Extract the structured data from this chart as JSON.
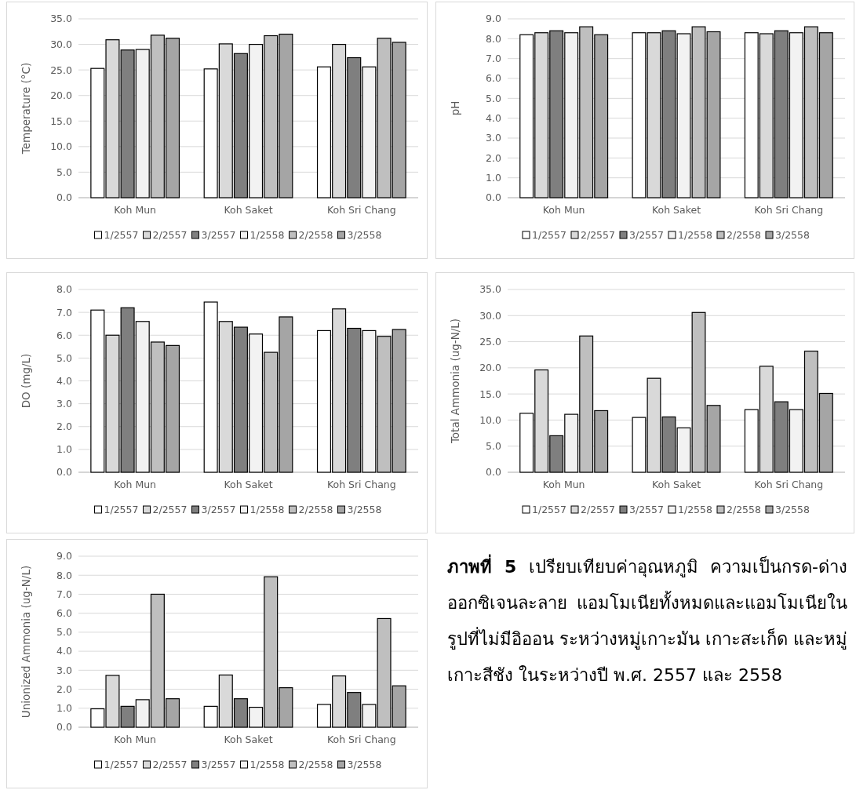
{
  "chart_data": [
    {
      "type": "bar",
      "ylabel": "Temperature (°C)",
      "categories": [
        "Koh Mun",
        "Koh Saket",
        "Koh Sri Chang"
      ],
      "ylim": [
        0,
        35
      ],
      "yticks": [
        {
          "value": 0,
          "label": "0.0"
        },
        {
          "value": 5,
          "label": "5.0"
        },
        {
          "value": 10,
          "label": "10.0"
        },
        {
          "value": 15,
          "label": "15.0"
        },
        {
          "value": 20,
          "label": "20.0"
        },
        {
          "value": 25,
          "label": "25.0"
        },
        {
          "value": 30,
          "label": "30.0"
        },
        {
          "value": 35,
          "label": "35.0"
        }
      ],
      "grid": "y",
      "legend": "bottom",
      "series": [
        {
          "name": "1/2557",
          "color": "#ffffff",
          "values": [
            25.3,
            25.2,
            25.6
          ]
        },
        {
          "name": "2/2557",
          "color": "#d9d9d9",
          "values": [
            30.9,
            30.1,
            30.0
          ]
        },
        {
          "name": "3/2557",
          "color": "#7f7f7f",
          "values": [
            28.9,
            28.2,
            27.4
          ]
        },
        {
          "name": "1/2558",
          "color": "#f2f2f2",
          "values": [
            29.0,
            30.0,
            25.6
          ]
        },
        {
          "name": "2/2558",
          "color": "#bfbfbf",
          "values": [
            31.8,
            31.7,
            31.2
          ]
        },
        {
          "name": "3/2558",
          "color": "#a5a5a5",
          "values": [
            31.2,
            32.0,
            30.4
          ]
        }
      ]
    },
    {
      "type": "bar",
      "ylabel": "pH",
      "categories": [
        "Koh Mun",
        "Koh Saket",
        "Koh Sri Chang"
      ],
      "ylim": [
        0,
        9
      ],
      "yticks": [
        {
          "value": 0,
          "label": "0.0"
        },
        {
          "value": 1,
          "label": "1.0"
        },
        {
          "value": 2,
          "label": "2.0"
        },
        {
          "value": 3,
          "label": "3.0"
        },
        {
          "value": 4,
          "label": "4.0"
        },
        {
          "value": 5,
          "label": "5.0"
        },
        {
          "value": 6,
          "label": "6.0"
        },
        {
          "value": 7,
          "label": "7.0"
        },
        {
          "value": 8,
          "label": "8.0"
        },
        {
          "value": 9,
          "label": "9.0"
        }
      ],
      "grid": "y",
      "legend": "bottom",
      "series": [
        {
          "name": "1/2557",
          "color": "#ffffff",
          "values": [
            8.2,
            8.3,
            8.3
          ]
        },
        {
          "name": "2/2557",
          "color": "#d9d9d9",
          "values": [
            8.3,
            8.3,
            8.25
          ]
        },
        {
          "name": "3/2557",
          "color": "#7f7f7f",
          "values": [
            8.4,
            8.4,
            8.4
          ]
        },
        {
          "name": "1/2558",
          "color": "#f2f2f2",
          "values": [
            8.3,
            8.25,
            8.3
          ]
        },
        {
          "name": "2/2558",
          "color": "#bfbfbf",
          "values": [
            8.6,
            8.6,
            8.6
          ]
        },
        {
          "name": "3/2558",
          "color": "#a5a5a5",
          "values": [
            8.2,
            8.35,
            8.3
          ]
        }
      ]
    },
    {
      "type": "bar",
      "ylabel": "DO (mg/L)",
      "categories": [
        "Koh Mun",
        "Koh Saket",
        "Koh Sri Chang"
      ],
      "ylim": [
        0,
        8
      ],
      "yticks": [
        {
          "value": 0,
          "label": "0.0"
        },
        {
          "value": 1,
          "label": "1.0"
        },
        {
          "value": 2,
          "label": "2.0"
        },
        {
          "value": 3,
          "label": "3.0"
        },
        {
          "value": 4,
          "label": "4.0"
        },
        {
          "value": 5,
          "label": "5.0"
        },
        {
          "value": 6,
          "label": "6.0"
        },
        {
          "value": 7,
          "label": "7.0"
        },
        {
          "value": 8,
          "label": "8.0"
        }
      ],
      "grid": "y",
      "legend": "bottom",
      "series": [
        {
          "name": "1/2557",
          "color": "#ffffff",
          "values": [
            7.1,
            7.45,
            6.2
          ]
        },
        {
          "name": "2/2557",
          "color": "#d9d9d9",
          "values": [
            6.0,
            6.6,
            7.15
          ]
        },
        {
          "name": "3/2557",
          "color": "#7f7f7f",
          "values": [
            7.2,
            6.35,
            6.3
          ]
        },
        {
          "name": "1/2558",
          "color": "#f2f2f2",
          "values": [
            6.6,
            6.05,
            6.2
          ]
        },
        {
          "name": "2/2558",
          "color": "#bfbfbf",
          "values": [
            5.7,
            5.25,
            5.95
          ]
        },
        {
          "name": "3/2558",
          "color": "#a5a5a5",
          "values": [
            5.55,
            6.8,
            6.25
          ]
        }
      ]
    },
    {
      "type": "bar",
      "ylabel": "Total Ammonia (ug-N/L)",
      "categories": [
        "Koh Mun",
        "Koh Saket",
        "Koh Sri Chang"
      ],
      "ylim": [
        0,
        35
      ],
      "yticks": [
        {
          "value": 0,
          "label": "0.0"
        },
        {
          "value": 5,
          "label": "5.0"
        },
        {
          "value": 10,
          "label": "10.0"
        },
        {
          "value": 15,
          "label": "15.0"
        },
        {
          "value": 20,
          "label": "20.0"
        },
        {
          "value": 25,
          "label": "25.0"
        },
        {
          "value": 30,
          "label": "30.0"
        },
        {
          "value": 35,
          "label": "35.0"
        }
      ],
      "grid": "y",
      "legend": "bottom",
      "series": [
        {
          "name": "1/2557",
          "color": "#ffffff",
          "values": [
            11.3,
            10.5,
            12.0
          ]
        },
        {
          "name": "2/2557",
          "color": "#d9d9d9",
          "values": [
            19.6,
            18.0,
            20.3
          ]
        },
        {
          "name": "3/2557",
          "color": "#7f7f7f",
          "values": [
            7.0,
            10.6,
            13.5
          ]
        },
        {
          "name": "1/2558",
          "color": "#f2f2f2",
          "values": [
            11.1,
            8.5,
            12.0
          ]
        },
        {
          "name": "2/2558",
          "color": "#bfbfbf",
          "values": [
            26.1,
            30.6,
            23.2
          ]
        },
        {
          "name": "3/2558",
          "color": "#a5a5a5",
          "values": [
            11.8,
            12.8,
            15.1
          ]
        }
      ]
    },
    {
      "type": "bar",
      "ylabel": "Unionized Ammonia (ug-N/L)",
      "categories": [
        "Koh Mun",
        "Koh Saket",
        "Koh Sri Chang"
      ],
      "ylim": [
        0,
        9
      ],
      "yticks": [
        {
          "value": 0,
          "label": "0.0"
        },
        {
          "value": 1,
          "label": "1.0"
        },
        {
          "value": 2,
          "label": "2.0"
        },
        {
          "value": 3,
          "label": "3.0"
        },
        {
          "value": 4,
          "label": "4.0"
        },
        {
          "value": 5,
          "label": "5.0"
        },
        {
          "value": 6,
          "label": "6.0"
        },
        {
          "value": 7,
          "label": "7.0"
        },
        {
          "value": 8,
          "label": "8.0"
        },
        {
          "value": 9,
          "label": "9.0"
        }
      ],
      "grid": "y",
      "legend": "bottom",
      "series": [
        {
          "name": "1/2557",
          "color": "#ffffff",
          "values": [
            0.97,
            1.1,
            1.2
          ]
        },
        {
          "name": "2/2557",
          "color": "#d9d9d9",
          "values": [
            2.73,
            2.75,
            2.7
          ]
        },
        {
          "name": "3/2557",
          "color": "#7f7f7f",
          "values": [
            1.1,
            1.5,
            1.83
          ]
        },
        {
          "name": "1/2558",
          "color": "#f2f2f2",
          "values": [
            1.45,
            1.05,
            1.2
          ]
        },
        {
          "name": "2/2558",
          "color": "#bfbfbf",
          "values": [
            7.0,
            7.92,
            5.72
          ]
        },
        {
          "name": "3/2558",
          "color": "#a5a5a5",
          "values": [
            1.5,
            2.08,
            2.18
          ]
        }
      ]
    },
    {
      "type": "other",
      "title": "ภาพที่ 5",
      "subtitle": "เปรียบเทียบค่าอุณหภูมิ ความเป็นกรด-ด่าง ออกซิเจนละลาย แอมโมเนียทั้งหมดและแอมโมเนียในรูปที่ไม่มีอิออน ระหว่างหมู่เกาะมัน เกาะสะเก็ด และหมู่เกาะสีชัง ในระหว่างปี พ.ศ. 2557 และ 2558"
    }
  ]
}
